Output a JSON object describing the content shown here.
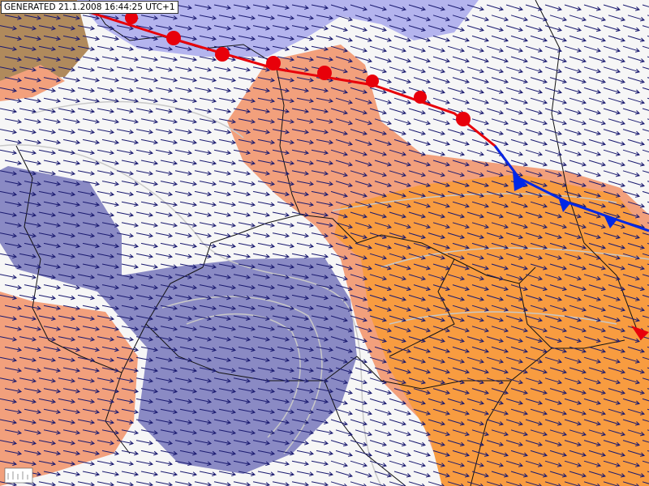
{
  "header": {
    "generated": "GENERATED 21.1.2008 16:44:25 UTC+1"
  }
}
